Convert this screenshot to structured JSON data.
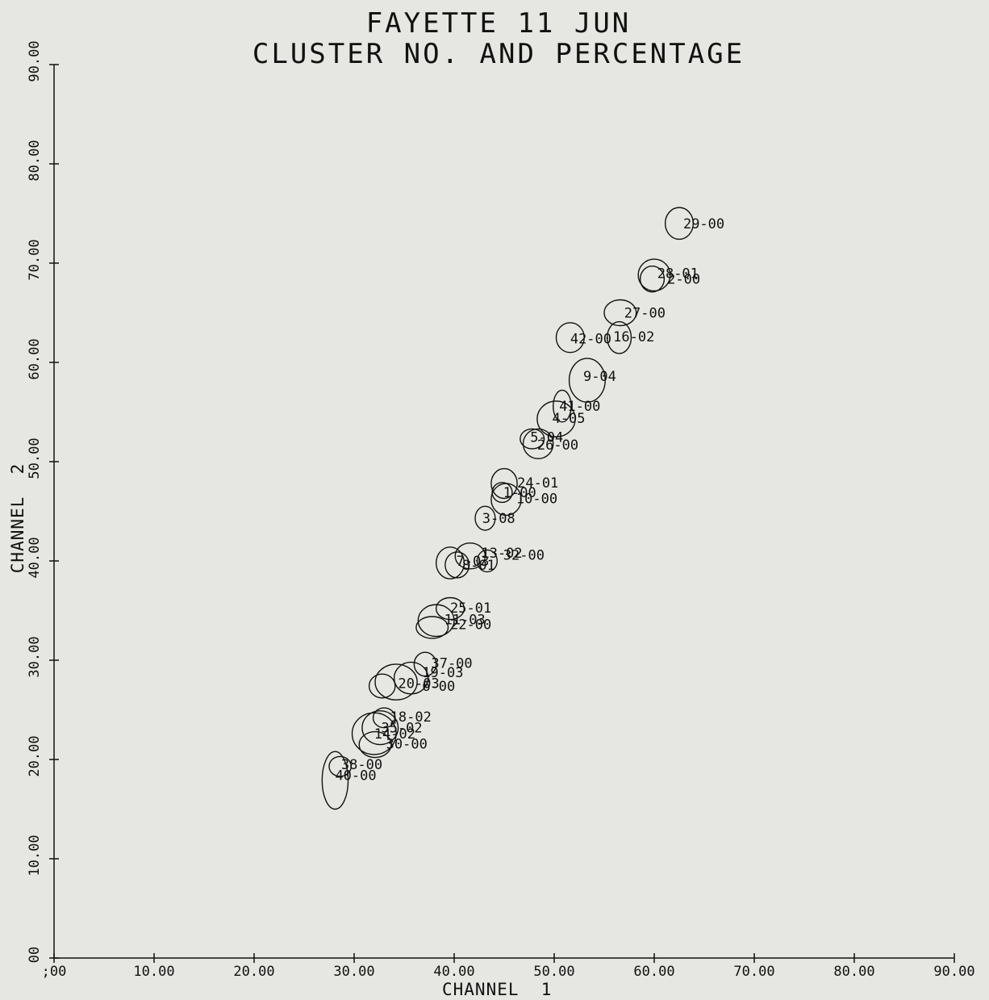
{
  "chart_data": {
    "type": "scatter",
    "title": "FAYETTE 11 JUN",
    "subtitle": "CLUSTER NO. AND PERCENTAGE",
    "xlabel": "CHANNEL  1",
    "ylabel": "CHANNEL  2",
    "xlim": [
      0,
      90
    ],
    "ylim": [
      0,
      90
    ],
    "xticks": [
      ";00",
      "10.00",
      "20.00",
      "30.00",
      "40.00",
      "50.00",
      "60.00",
      "70.00",
      "80.00",
      "90.00"
    ],
    "yticks": [
      "00",
      "10.00",
      "20.00",
      "30.00",
      "40.00",
      "50.00",
      "60.00",
      "70.00",
      "80.00",
      "90.00"
    ],
    "grid": false,
    "clusters": [
      {
        "label": "29-00",
        "x": 62.5,
        "y": 74.0,
        "rx": 1.4,
        "ry": 1.6
      },
      {
        "label": "28-01",
        "x": 60.0,
        "y": 68.8,
        "rx": 1.6,
        "ry": 1.6
      },
      {
        "label": "2-00",
        "x": 59.8,
        "y": 68.4,
        "rx": 1.2,
        "ry": 1.3
      },
      {
        "label": "27-00",
        "x": 56.6,
        "y": 65.0,
        "rx": 1.6,
        "ry": 1.3
      },
      {
        "label": "42-00",
        "x": 51.6,
        "y": 62.5,
        "rx": 1.4,
        "ry": 1.5
      },
      {
        "label": "16-02",
        "x": 56.5,
        "y": 62.5,
        "rx": 1.2,
        "ry": 1.6
      },
      {
        "label": "9-04",
        "x": 53.3,
        "y": 58.2,
        "rx": 1.8,
        "ry": 2.2
      },
      {
        "label": "41-00",
        "x": 50.8,
        "y": 55.6,
        "rx": 0.9,
        "ry": 1.6
      },
      {
        "label": "4-05",
        "x": 50.2,
        "y": 54.3,
        "rx": 1.9,
        "ry": 1.8
      },
      {
        "label": "5-04",
        "x": 47.8,
        "y": 52.3,
        "rx": 1.2,
        "ry": 1.0
      },
      {
        "label": "26-00",
        "x": 48.4,
        "y": 51.8,
        "rx": 1.5,
        "ry": 1.5
      },
      {
        "label": "24-01",
        "x": 45.0,
        "y": 47.8,
        "rx": 1.3,
        "ry": 1.5
      },
      {
        "label": "1-00",
        "x": 44.8,
        "y": 46.9,
        "rx": 1.0,
        "ry": 1.0
      },
      {
        "label": "10-00",
        "x": 45.2,
        "y": 46.2,
        "rx": 1.5,
        "ry": 1.6
      },
      {
        "label": "3-08",
        "x": 43.1,
        "y": 44.3,
        "rx": 1.0,
        "ry": 1.2
      },
      {
        "label": "13-02",
        "x": 41.6,
        "y": 40.5,
        "rx": 1.5,
        "ry": 1.3
      },
      {
        "label": "32-00",
        "x": 43.3,
        "y": 40.0,
        "rx": 1.0,
        "ry": 1.1
      },
      {
        "label": "7-03",
        "x": 39.6,
        "y": 39.8,
        "rx": 1.4,
        "ry": 1.6
      },
      {
        "label": "8-01",
        "x": 40.3,
        "y": 39.6,
        "rx": 1.2,
        "ry": 1.3
      },
      {
        "label": "25-01",
        "x": 39.6,
        "y": 35.2,
        "rx": 1.4,
        "ry": 1.1
      },
      {
        "label": "11-03",
        "x": 38.2,
        "y": 34.0,
        "rx": 1.8,
        "ry": 1.6
      },
      {
        "label": "22-00",
        "x": 37.8,
        "y": 33.3,
        "rx": 1.6,
        "ry": 1.1
      },
      {
        "label": "37-00",
        "x": 37.1,
        "y": 29.6,
        "rx": 1.1,
        "ry": 1.2
      },
      {
        "label": "19-03",
        "x": 35.7,
        "y": 28.2,
        "rx": 1.7,
        "ry": 1.6
      },
      {
        "label": "20-03",
        "x": 34.2,
        "y": 27.8,
        "rx": 2.1,
        "ry": 1.8
      },
      {
        "label": "6-00",
        "x": 32.8,
        "y": 27.4,
        "rx": 1.3,
        "ry": 1.2
      },
      {
        "label": "18-02",
        "x": 33.0,
        "y": 24.2,
        "rx": 1.1,
        "ry": 1.0
      },
      {
        "label": "35-02",
        "x": 32.6,
        "y": 23.2,
        "rx": 1.8,
        "ry": 1.7
      },
      {
        "label": "14-02",
        "x": 32.0,
        "y": 22.6,
        "rx": 2.2,
        "ry": 2.1
      },
      {
        "label": "30-00",
        "x": 32.1,
        "y": 21.5,
        "rx": 1.6,
        "ry": 1.3
      },
      {
        "label": "38-00",
        "x": 28.6,
        "y": 19.3,
        "rx": 1.1,
        "ry": 1.0
      },
      {
        "label": "40-00",
        "x": 28.1,
        "y": 17.9,
        "rx": 1.3,
        "ry": 2.9
      }
    ],
    "labels": [
      {
        "text": "29-00",
        "x": 62.9,
        "y": 74.0
      },
      {
        "text": "28-01",
        "x": 60.3,
        "y": 69.0
      },
      {
        "text": "2-00",
        "x": 61.3,
        "y": 68.4
      },
      {
        "text": "27-00",
        "x": 57.0,
        "y": 65.0
      },
      {
        "text": "42-00",
        "x": 51.6,
        "y": 62.4
      },
      {
        "text": "16-02",
        "x": 55.9,
        "y": 62.6
      },
      {
        "text": "9-04",
        "x": 52.9,
        "y": 58.6
      },
      {
        "text": "41-00",
        "x": 50.5,
        "y": 55.6
      },
      {
        "text": "4-05",
        "x": 49.8,
        "y": 54.4
      },
      {
        "text": "5-04",
        "x": 47.6,
        "y": 52.5
      },
      {
        "text": "26-00",
        "x": 48.3,
        "y": 51.7
      },
      {
        "text": "24-01",
        "x": 46.3,
        "y": 47.9
      },
      {
        "text": "1-00",
        "x": 44.9,
        "y": 46.9
      },
      {
        "text": "10-00",
        "x": 46.2,
        "y": 46.3
      },
      {
        "text": "3-08",
        "x": 42.8,
        "y": 44.3
      },
      {
        "text": "13-02",
        "x": 42.7,
        "y": 40.8
      },
      {
        "text": "32-00",
        "x": 44.9,
        "y": 40.6
      },
      {
        "text": "7-03",
        "x": 40.2,
        "y": 40.0
      },
      {
        "text": "8-01",
        "x": 40.8,
        "y": 39.6
      },
      {
        "text": "25-01",
        "x": 39.6,
        "y": 35.3
      },
      {
        "text": "11-03",
        "x": 39.0,
        "y": 34.1
      },
      {
        "text": "22-00",
        "x": 39.6,
        "y": 33.6
      },
      {
        "text": "37-00",
        "x": 37.7,
        "y": 29.7
      },
      {
        "text": "19-03",
        "x": 36.8,
        "y": 28.8
      },
      {
        "text": "20-03",
        "x": 34.4,
        "y": 27.7
      },
      {
        "text": "6-00",
        "x": 36.8,
        "y": 27.4
      },
      {
        "text": "18-02",
        "x": 33.6,
        "y": 24.3
      },
      {
        "text": "35-02",
        "x": 32.7,
        "y": 23.2
      },
      {
        "text": "14-02",
        "x": 32.0,
        "y": 22.6
      },
      {
        "text": "30-00",
        "x": 33.2,
        "y": 21.6
      },
      {
        "text": "38-00",
        "x": 28.7,
        "y": 19.5
      },
      {
        "text": "40-00",
        "x": 28.1,
        "y": 18.4
      }
    ]
  }
}
